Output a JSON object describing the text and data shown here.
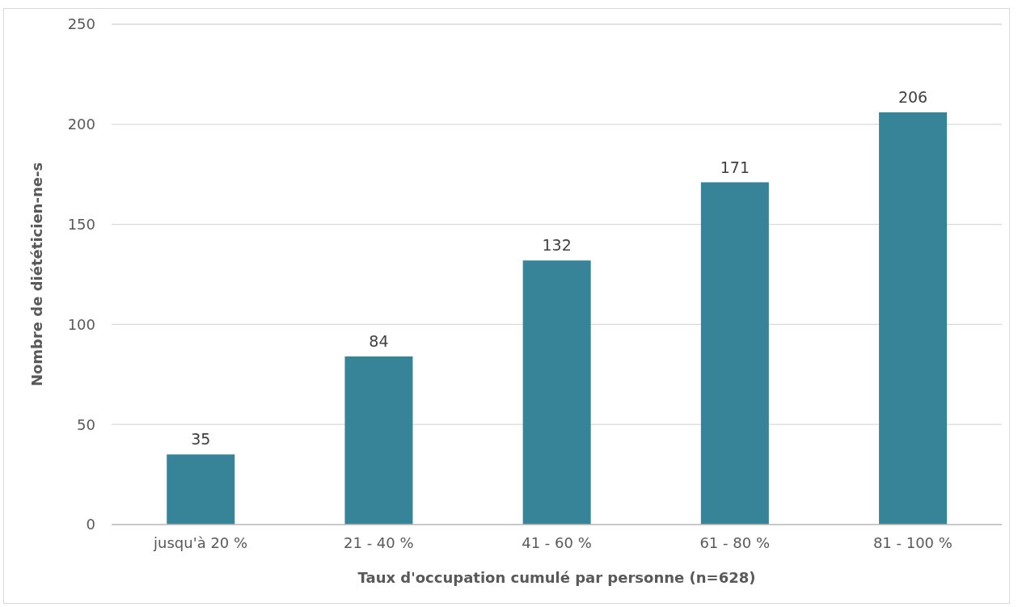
{
  "chart_data": {
    "type": "bar",
    "xlabel": "Taux d'occupation cumulé par personne (n=628)",
    "ylabel": "Nombre de diététicien-ne-s",
    "categories": [
      "jusqu'à 20 %",
      "21 - 40 %",
      "41 - 60 %",
      "61 - 80 %",
      "81 - 100 %"
    ],
    "values": [
      35,
      84,
      132,
      171,
      206
    ],
    "color": "#378397",
    "ylim": [
      0,
      250
    ],
    "yticks": [
      0,
      50,
      100,
      150,
      200,
      250
    ],
    "grid": "y",
    "data_labels": true
  }
}
